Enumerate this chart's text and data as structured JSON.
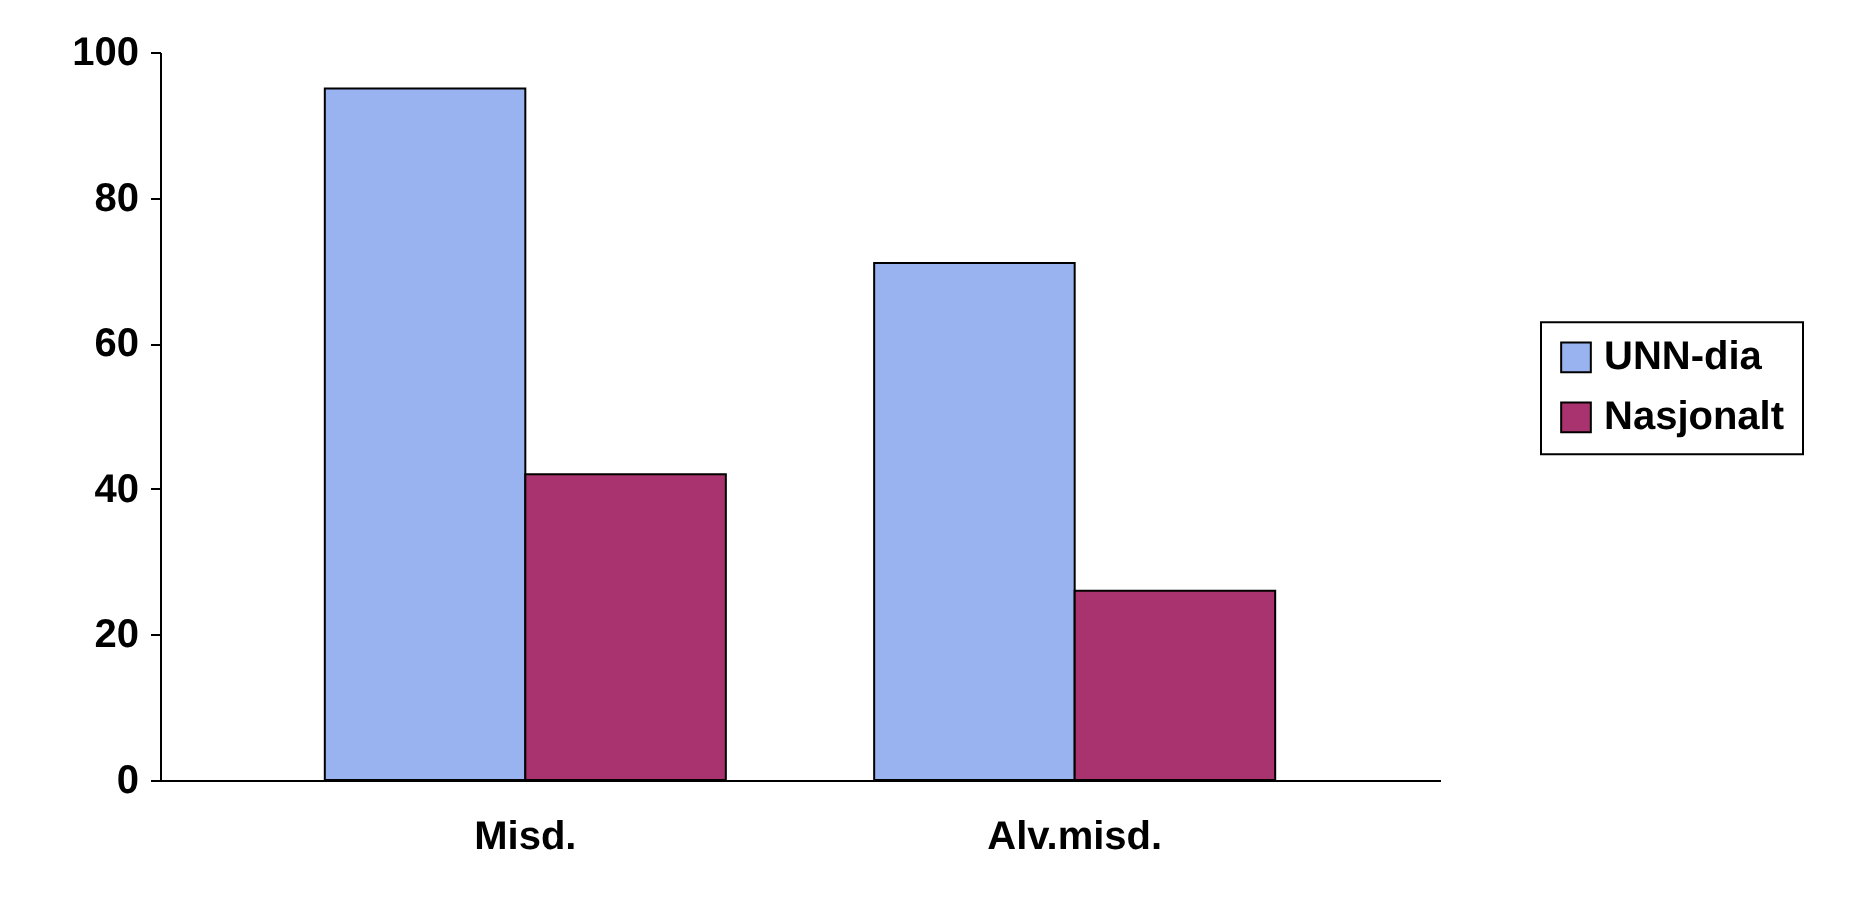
{
  "chart_data": {
    "type": "bar",
    "categories": [
      "Misd.",
      "Alv.misd."
    ],
    "series": [
      {
        "name": "UNN-dia",
        "color": "#99b3f0",
        "values": [
          95,
          71
        ]
      },
      {
        "name": "Nasjonalt",
        "color": "#a8336e",
        "values": [
          42,
          26
        ]
      }
    ],
    "ylim": [
      0,
      100
    ],
    "yticks": [
      0,
      20,
      40,
      60,
      80,
      100
    ],
    "grid": false,
    "legend": "right"
  }
}
